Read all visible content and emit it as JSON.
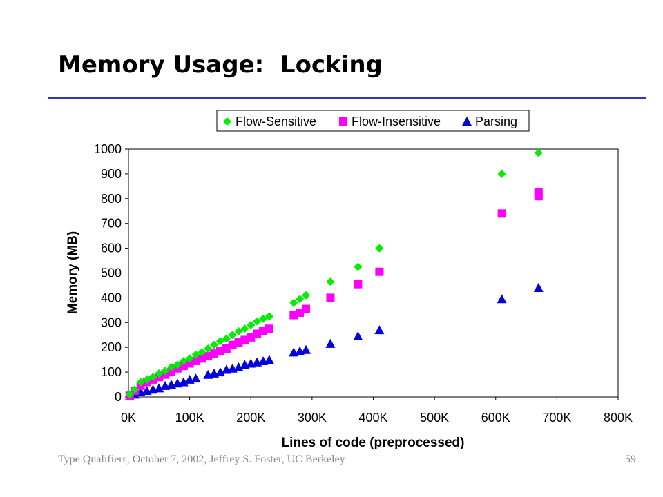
{
  "slide": {
    "title": "Memory Usage:  Locking",
    "footer_left": "Type Qualifiers, October 7, 2002, Jeffrey S. Foster, UC Berkeley",
    "page_number": "59"
  },
  "colors": {
    "title_rule": "#3333cc",
    "flow_sensitive": "#00ee00",
    "flow_insensitive": "#ff00ff",
    "parsing": "#0000dd"
  },
  "chart_data": {
    "type": "scatter",
    "title": "",
    "xlabel": "Lines of code (preprocessed)",
    "ylabel": "Memory (MB)",
    "xlim": [
      0,
      800000
    ],
    "ylim": [
      0,
      1000
    ],
    "xticks": [
      0,
      100000,
      200000,
      300000,
      400000,
      500000,
      600000,
      700000,
      800000
    ],
    "xtick_labels": [
      "0K",
      "100K",
      "200K",
      "300K",
      "400K",
      "500K",
      "600K",
      "700K",
      "800K"
    ],
    "yticks": [
      0,
      100,
      200,
      300,
      400,
      500,
      600,
      700,
      800,
      900,
      1000
    ],
    "ytick_labels": [
      "0",
      "100",
      "200",
      "300",
      "400",
      "500",
      "600",
      "700",
      "800",
      "900",
      "1000"
    ],
    "grid": false,
    "legend_position": "top",
    "series": [
      {
        "name": "Flow-Sensitive",
        "marker": "diamond",
        "color": "#00ee00",
        "points": [
          [
            2000,
            10
          ],
          [
            10000,
            30
          ],
          [
            20000,
            60
          ],
          [
            30000,
            70
          ],
          [
            40000,
            80
          ],
          [
            50000,
            95
          ],
          [
            60000,
            105
          ],
          [
            70000,
            120
          ],
          [
            80000,
            130
          ],
          [
            90000,
            145
          ],
          [
            100000,
            155
          ],
          [
            110000,
            170
          ],
          [
            120000,
            180
          ],
          [
            130000,
            195
          ],
          [
            140000,
            210
          ],
          [
            150000,
            225
          ],
          [
            160000,
            235
          ],
          [
            170000,
            250
          ],
          [
            180000,
            265
          ],
          [
            190000,
            275
          ],
          [
            200000,
            290
          ],
          [
            210000,
            305
          ],
          [
            220000,
            315
          ],
          [
            230000,
            325
          ],
          [
            270000,
            380
          ],
          [
            280000,
            395
          ],
          [
            290000,
            410
          ],
          [
            330000,
            465
          ],
          [
            375000,
            525
          ],
          [
            410000,
            600
          ],
          [
            610000,
            900
          ],
          [
            670000,
            985
          ]
        ]
      },
      {
        "name": "Flow-Insensitive",
        "marker": "square",
        "color": "#ff00ff",
        "points": [
          [
            2000,
            5
          ],
          [
            10000,
            25
          ],
          [
            20000,
            45
          ],
          [
            30000,
            60
          ],
          [
            40000,
            70
          ],
          [
            50000,
            80
          ],
          [
            60000,
            90
          ],
          [
            70000,
            100
          ],
          [
            80000,
            115
          ],
          [
            90000,
            125
          ],
          [
            100000,
            135
          ],
          [
            110000,
            145
          ],
          [
            120000,
            155
          ],
          [
            130000,
            165
          ],
          [
            140000,
            175
          ],
          [
            150000,
            185
          ],
          [
            160000,
            195
          ],
          [
            170000,
            210
          ],
          [
            180000,
            220
          ],
          [
            190000,
            230
          ],
          [
            200000,
            240
          ],
          [
            210000,
            255
          ],
          [
            220000,
            265
          ],
          [
            230000,
            275
          ],
          [
            270000,
            330
          ],
          [
            280000,
            340
          ],
          [
            290000,
            355
          ],
          [
            330000,
            400
          ],
          [
            375000,
            455
          ],
          [
            410000,
            505
          ],
          [
            610000,
            740
          ],
          [
            670000,
            810
          ],
          [
            670000,
            825
          ]
        ]
      },
      {
        "name": "Parsing",
        "marker": "triangle",
        "color": "#0000dd",
        "points": [
          [
            2000,
            3
          ],
          [
            10000,
            10
          ],
          [
            20000,
            20
          ],
          [
            30000,
            25
          ],
          [
            40000,
            30
          ],
          [
            50000,
            35
          ],
          [
            60000,
            45
          ],
          [
            70000,
            50
          ],
          [
            80000,
            55
          ],
          [
            90000,
            60
          ],
          [
            100000,
            70
          ],
          [
            110000,
            75
          ],
          [
            130000,
            90
          ],
          [
            140000,
            95
          ],
          [
            150000,
            100
          ],
          [
            160000,
            110
          ],
          [
            170000,
            115
          ],
          [
            180000,
            120
          ],
          [
            190000,
            130
          ],
          [
            200000,
            135
          ],
          [
            210000,
            140
          ],
          [
            220000,
            145
          ],
          [
            230000,
            150
          ],
          [
            270000,
            180
          ],
          [
            280000,
            185
          ],
          [
            290000,
            190
          ],
          [
            330000,
            215
          ],
          [
            375000,
            245
          ],
          [
            410000,
            270
          ],
          [
            610000,
            395
          ],
          [
            670000,
            440
          ]
        ]
      }
    ]
  }
}
